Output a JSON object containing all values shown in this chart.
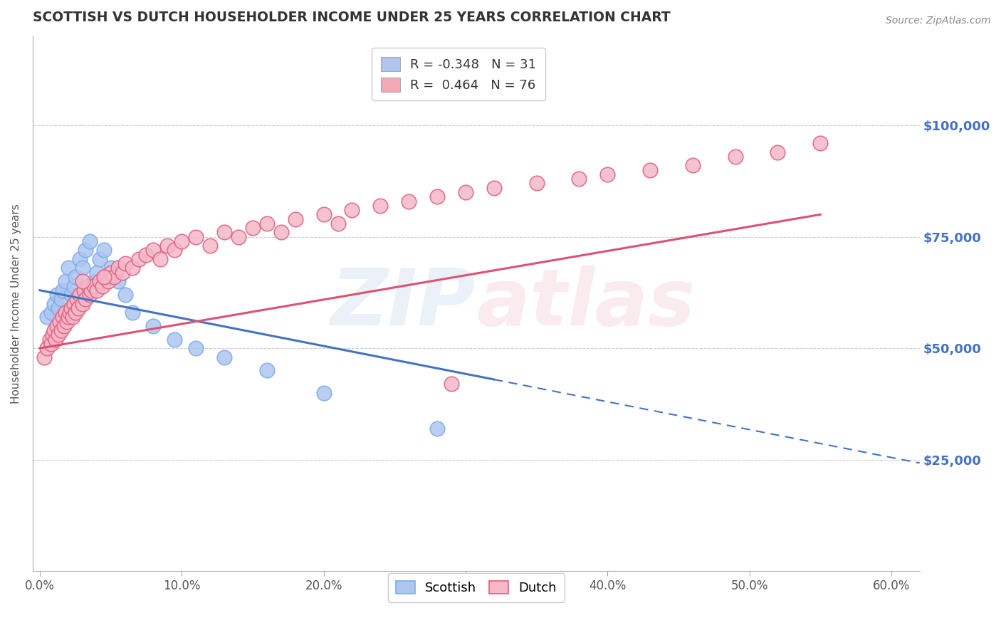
{
  "title": "SCOTTISH VS DUTCH HOUSEHOLDER INCOME UNDER 25 YEARS CORRELATION CHART",
  "source": "Source: ZipAtlas.com",
  "ylabel": "Householder Income Under 25 years",
  "xlabel_ticks": [
    "0.0%",
    "10.0%",
    "20.0%",
    "30.0%",
    "40.0%",
    "50.0%",
    "60.0%"
  ],
  "xlabel_vals": [
    0.0,
    0.1,
    0.2,
    0.3,
    0.4,
    0.5,
    0.6
  ],
  "ytick_labels": [
    "$25,000",
    "$50,000",
    "$75,000",
    "$100,000"
  ],
  "ytick_vals": [
    25000,
    50000,
    75000,
    100000
  ],
  "ylim": [
    0,
    120000
  ],
  "xlim": [
    -0.005,
    0.62
  ],
  "watermark": "ZIPatlas",
  "legend_entries": [
    {
      "label": "R = -0.348   N = 31",
      "color": "#aec6f0"
    },
    {
      "label": "R =  0.464   N = 76",
      "color": "#f4a7b5"
    }
  ],
  "series_scottish": {
    "marker_facecolor": "#aec6f0",
    "marker_edgecolor": "#7aacee",
    "line_color": "#4472c4",
    "x": [
      0.005,
      0.008,
      0.01,
      0.012,
      0.013,
      0.015,
      0.016,
      0.018,
      0.02,
      0.022,
      0.024,
      0.025,
      0.028,
      0.03,
      0.032,
      0.035,
      0.038,
      0.04,
      0.042,
      0.045,
      0.05,
      0.055,
      0.06,
      0.065,
      0.08,
      0.095,
      0.11,
      0.13,
      0.16,
      0.2,
      0.28
    ],
    "y": [
      57000,
      58000,
      60000,
      62000,
      59000,
      61000,
      63000,
      65000,
      68000,
      62000,
      64000,
      66000,
      70000,
      68000,
      72000,
      74000,
      65000,
      67000,
      70000,
      72000,
      68000,
      65000,
      62000,
      58000,
      55000,
      52000,
      50000,
      48000,
      45000,
      40000,
      32000
    ]
  },
  "series_dutch": {
    "marker_facecolor": "#f4b8c8",
    "marker_edgecolor": "#e06080",
    "line_color": "#e05070",
    "x": [
      0.003,
      0.005,
      0.007,
      0.008,
      0.009,
      0.01,
      0.011,
      0.012,
      0.013,
      0.014,
      0.015,
      0.016,
      0.017,
      0.018,
      0.019,
      0.02,
      0.021,
      0.022,
      0.023,
      0.024,
      0.025,
      0.026,
      0.027,
      0.028,
      0.03,
      0.031,
      0.032,
      0.034,
      0.035,
      0.036,
      0.038,
      0.04,
      0.042,
      0.044,
      0.046,
      0.048,
      0.05,
      0.052,
      0.055,
      0.058,
      0.06,
      0.065,
      0.07,
      0.075,
      0.08,
      0.085,
      0.09,
      0.095,
      0.1,
      0.11,
      0.12,
      0.13,
      0.14,
      0.15,
      0.16,
      0.17,
      0.18,
      0.2,
      0.21,
      0.22,
      0.24,
      0.26,
      0.28,
      0.3,
      0.32,
      0.35,
      0.38,
      0.4,
      0.43,
      0.46,
      0.49,
      0.52,
      0.55,
      0.03,
      0.045,
      0.29
    ],
    "y": [
      48000,
      50000,
      52000,
      51000,
      53000,
      54000,
      52000,
      55000,
      53000,
      56000,
      54000,
      57000,
      55000,
      58000,
      56000,
      57000,
      58000,
      59000,
      57000,
      60000,
      58000,
      61000,
      59000,
      62000,
      60000,
      63000,
      61000,
      64000,
      62000,
      63000,
      64000,
      63000,
      65000,
      64000,
      66000,
      65000,
      67000,
      66000,
      68000,
      67000,
      69000,
      68000,
      70000,
      71000,
      72000,
      70000,
      73000,
      72000,
      74000,
      75000,
      73000,
      76000,
      75000,
      77000,
      78000,
      76000,
      79000,
      80000,
      78000,
      81000,
      82000,
      83000,
      84000,
      85000,
      86000,
      87000,
      88000,
      89000,
      90000,
      91000,
      93000,
      94000,
      96000,
      65000,
      66000,
      42000
    ]
  },
  "background_color": "#ffffff",
  "grid_color": "#cccccc"
}
